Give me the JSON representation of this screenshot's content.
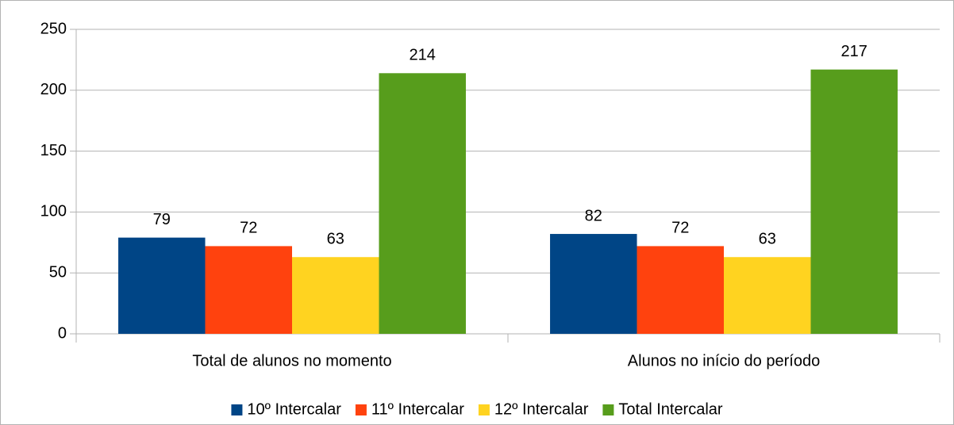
{
  "chart_data": {
    "type": "bar",
    "categories": [
      "Total de alunos no momento",
      "Alunos no início do período"
    ],
    "series": [
      {
        "name": "10º Intercalar",
        "color": "#004586",
        "values": [
          79,
          82
        ]
      },
      {
        "name": "11º Intercalar",
        "color": "#ff420e",
        "values": [
          72,
          72
        ]
      },
      {
        "name": "12º Intercalar",
        "color": "#ffd320",
        "values": [
          63,
          63
        ]
      },
      {
        "name": "Total Intercalar",
        "color": "#579d1c",
        "values": [
          214,
          217
        ]
      }
    ],
    "ylim": [
      0,
      250
    ],
    "yticks": [
      0,
      50,
      100,
      150,
      200,
      250
    ],
    "grid": true,
    "legend": "bottom"
  }
}
